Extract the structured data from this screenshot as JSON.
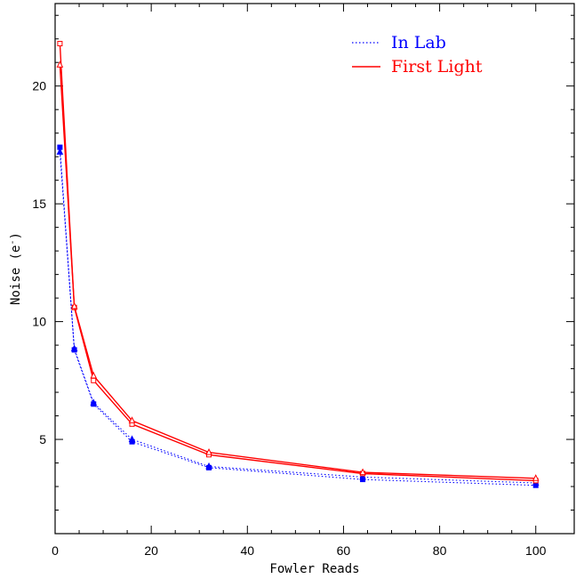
{
  "chart_data": {
    "type": "line",
    "title": "",
    "xlabel": "Fowler Reads",
    "ylabel_main": "Noise (e",
    "ylabel_sup": "-",
    "ylabel_close": ")",
    "xlim": [
      0,
      108
    ],
    "ylim": [
      1.0,
      23.5
    ],
    "xticks": [
      0,
      20,
      40,
      60,
      80,
      100
    ],
    "yticks": [
      5,
      10,
      15,
      20
    ],
    "grid": false,
    "legend_position": "top-right",
    "series": [
      {
        "name": "In Lab",
        "color": "#0000ff",
        "line_style": "dotted",
        "subseries": [
          {
            "marker": "square",
            "x": [
              1,
              4,
              8,
              16,
              32,
              64,
              100
            ],
            "y": [
              17.4,
              8.8,
              6.5,
              4.9,
              3.8,
              3.3,
              3.05
            ]
          },
          {
            "marker": "triangle",
            "x": [
              1,
              4,
              8,
              16,
              32,
              64,
              100
            ],
            "y": [
              17.2,
              8.85,
              6.55,
              5.0,
              3.85,
              3.4,
              3.15
            ]
          }
        ]
      },
      {
        "name": "First Light",
        "color": "#ff0000",
        "line_style": "solid",
        "subseries": [
          {
            "marker": "square",
            "x": [
              1,
              4,
              8,
              16,
              32,
              64,
              100
            ],
            "y": [
              21.8,
              10.6,
              7.5,
              5.65,
              4.35,
              3.55,
              3.25
            ]
          },
          {
            "marker": "triangle",
            "x": [
              1,
              4,
              8,
              16,
              32,
              64,
              100
            ],
            "y": [
              20.9,
              10.65,
              7.7,
              5.8,
              4.45,
              3.6,
              3.35
            ]
          }
        ]
      }
    ]
  }
}
